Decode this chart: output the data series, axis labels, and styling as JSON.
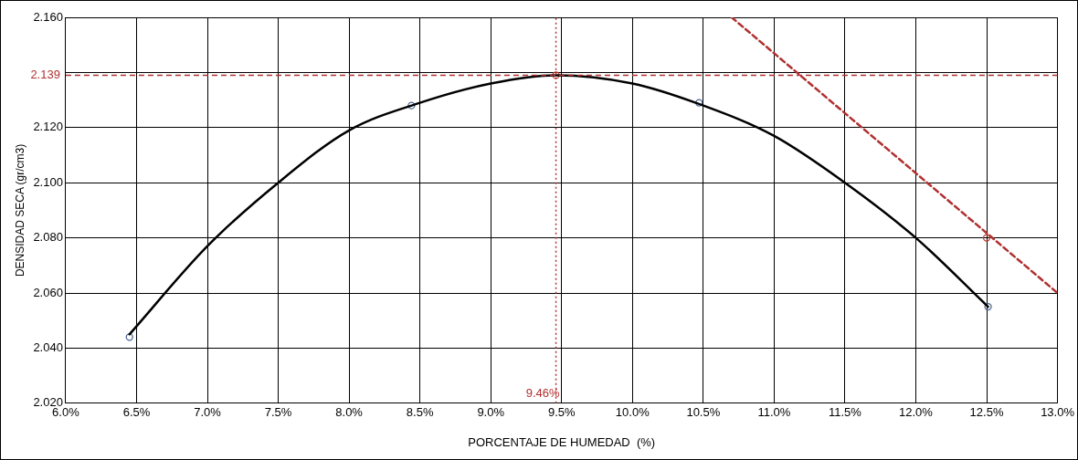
{
  "chart_data": {
    "type": "scatter",
    "xlabel": "PORCENTAJE DE HUMEDAD  (%)",
    "ylabel": "DENSIDAD SECA (gr/cm3)",
    "xlim": [
      6.0,
      13.0
    ],
    "xticks": [
      {
        "value": 6.0,
        "label": "6.0%"
      },
      {
        "value": 6.5,
        "label": "6.5%"
      },
      {
        "value": 7.0,
        "label": "7.0%"
      },
      {
        "value": 7.5,
        "label": "7.5%"
      },
      {
        "value": 8.0,
        "label": "8.0%"
      },
      {
        "value": 8.5,
        "label": "8.5%"
      },
      {
        "value": 9.0,
        "label": "9.0%"
      },
      {
        "value": 9.5,
        "label": "9.5%"
      },
      {
        "value": 10.0,
        "label": "10.0%"
      },
      {
        "value": 10.5,
        "label": "10.5%"
      },
      {
        "value": 11.0,
        "label": "11.0%"
      },
      {
        "value": 11.5,
        "label": "11.5%"
      },
      {
        "value": 12.0,
        "label": "12.0%"
      },
      {
        "value": 12.5,
        "label": "12.5%"
      },
      {
        "value": 13.0,
        "label": "13.0%"
      }
    ],
    "ylim": [
      2.02,
      2.16
    ],
    "yticks": [
      {
        "value": 2.02,
        "label": "2.020"
      },
      {
        "value": 2.04,
        "label": "2.040"
      },
      {
        "value": 2.06,
        "label": "2.060"
      },
      {
        "value": 2.08,
        "label": "2.080"
      },
      {
        "value": 2.1,
        "label": "2.100"
      },
      {
        "value": 2.12,
        "label": "2.120"
      },
      {
        "value": 2.14,
        "label": null
      },
      {
        "value": 2.16,
        "label": "2.160"
      }
    ],
    "grid": true,
    "series": [
      {
        "type": "line",
        "color": "#000000",
        "marker": "none",
        "line_style": "solid",
        "x": [
          6.45,
          7.0,
          7.5,
          8.0,
          8.5,
          9.0,
          9.46,
          10.0,
          10.5,
          11.0,
          11.5,
          12.0,
          12.51
        ],
        "values": [
          2.045,
          2.077,
          2.1,
          2.119,
          2.129,
          2.136,
          2.139,
          2.136,
          2.128,
          2.117,
          2.1,
          2.08,
          2.055
        ]
      },
      {
        "type": "scatter",
        "color": "#4a6590",
        "marker": "circle",
        "x": [
          6.45,
          8.44,
          10.47,
          12.51
        ],
        "values": [
          2.044,
          2.128,
          2.129,
          2.055
        ]
      },
      {
        "type": "line",
        "color": "#b03030",
        "marker": "none",
        "line_style": "dashed",
        "x": [
          10.7,
          13.0
        ],
        "values": [
          2.16,
          2.06
        ]
      },
      {
        "type": "scatter",
        "color": "#c0392b",
        "marker": "circle",
        "x": [
          9.46,
          12.5
        ],
        "values": [
          2.139,
          2.08
        ]
      }
    ],
    "ref_lines": [
      {
        "axis": "y",
        "value": 2.139,
        "label": "2.139",
        "color": "#b03030",
        "line_style": "dashed"
      },
      {
        "axis": "x",
        "value": 9.46,
        "label": "9.46%",
        "color": "#b03030",
        "line_style": "dotted"
      }
    ]
  }
}
